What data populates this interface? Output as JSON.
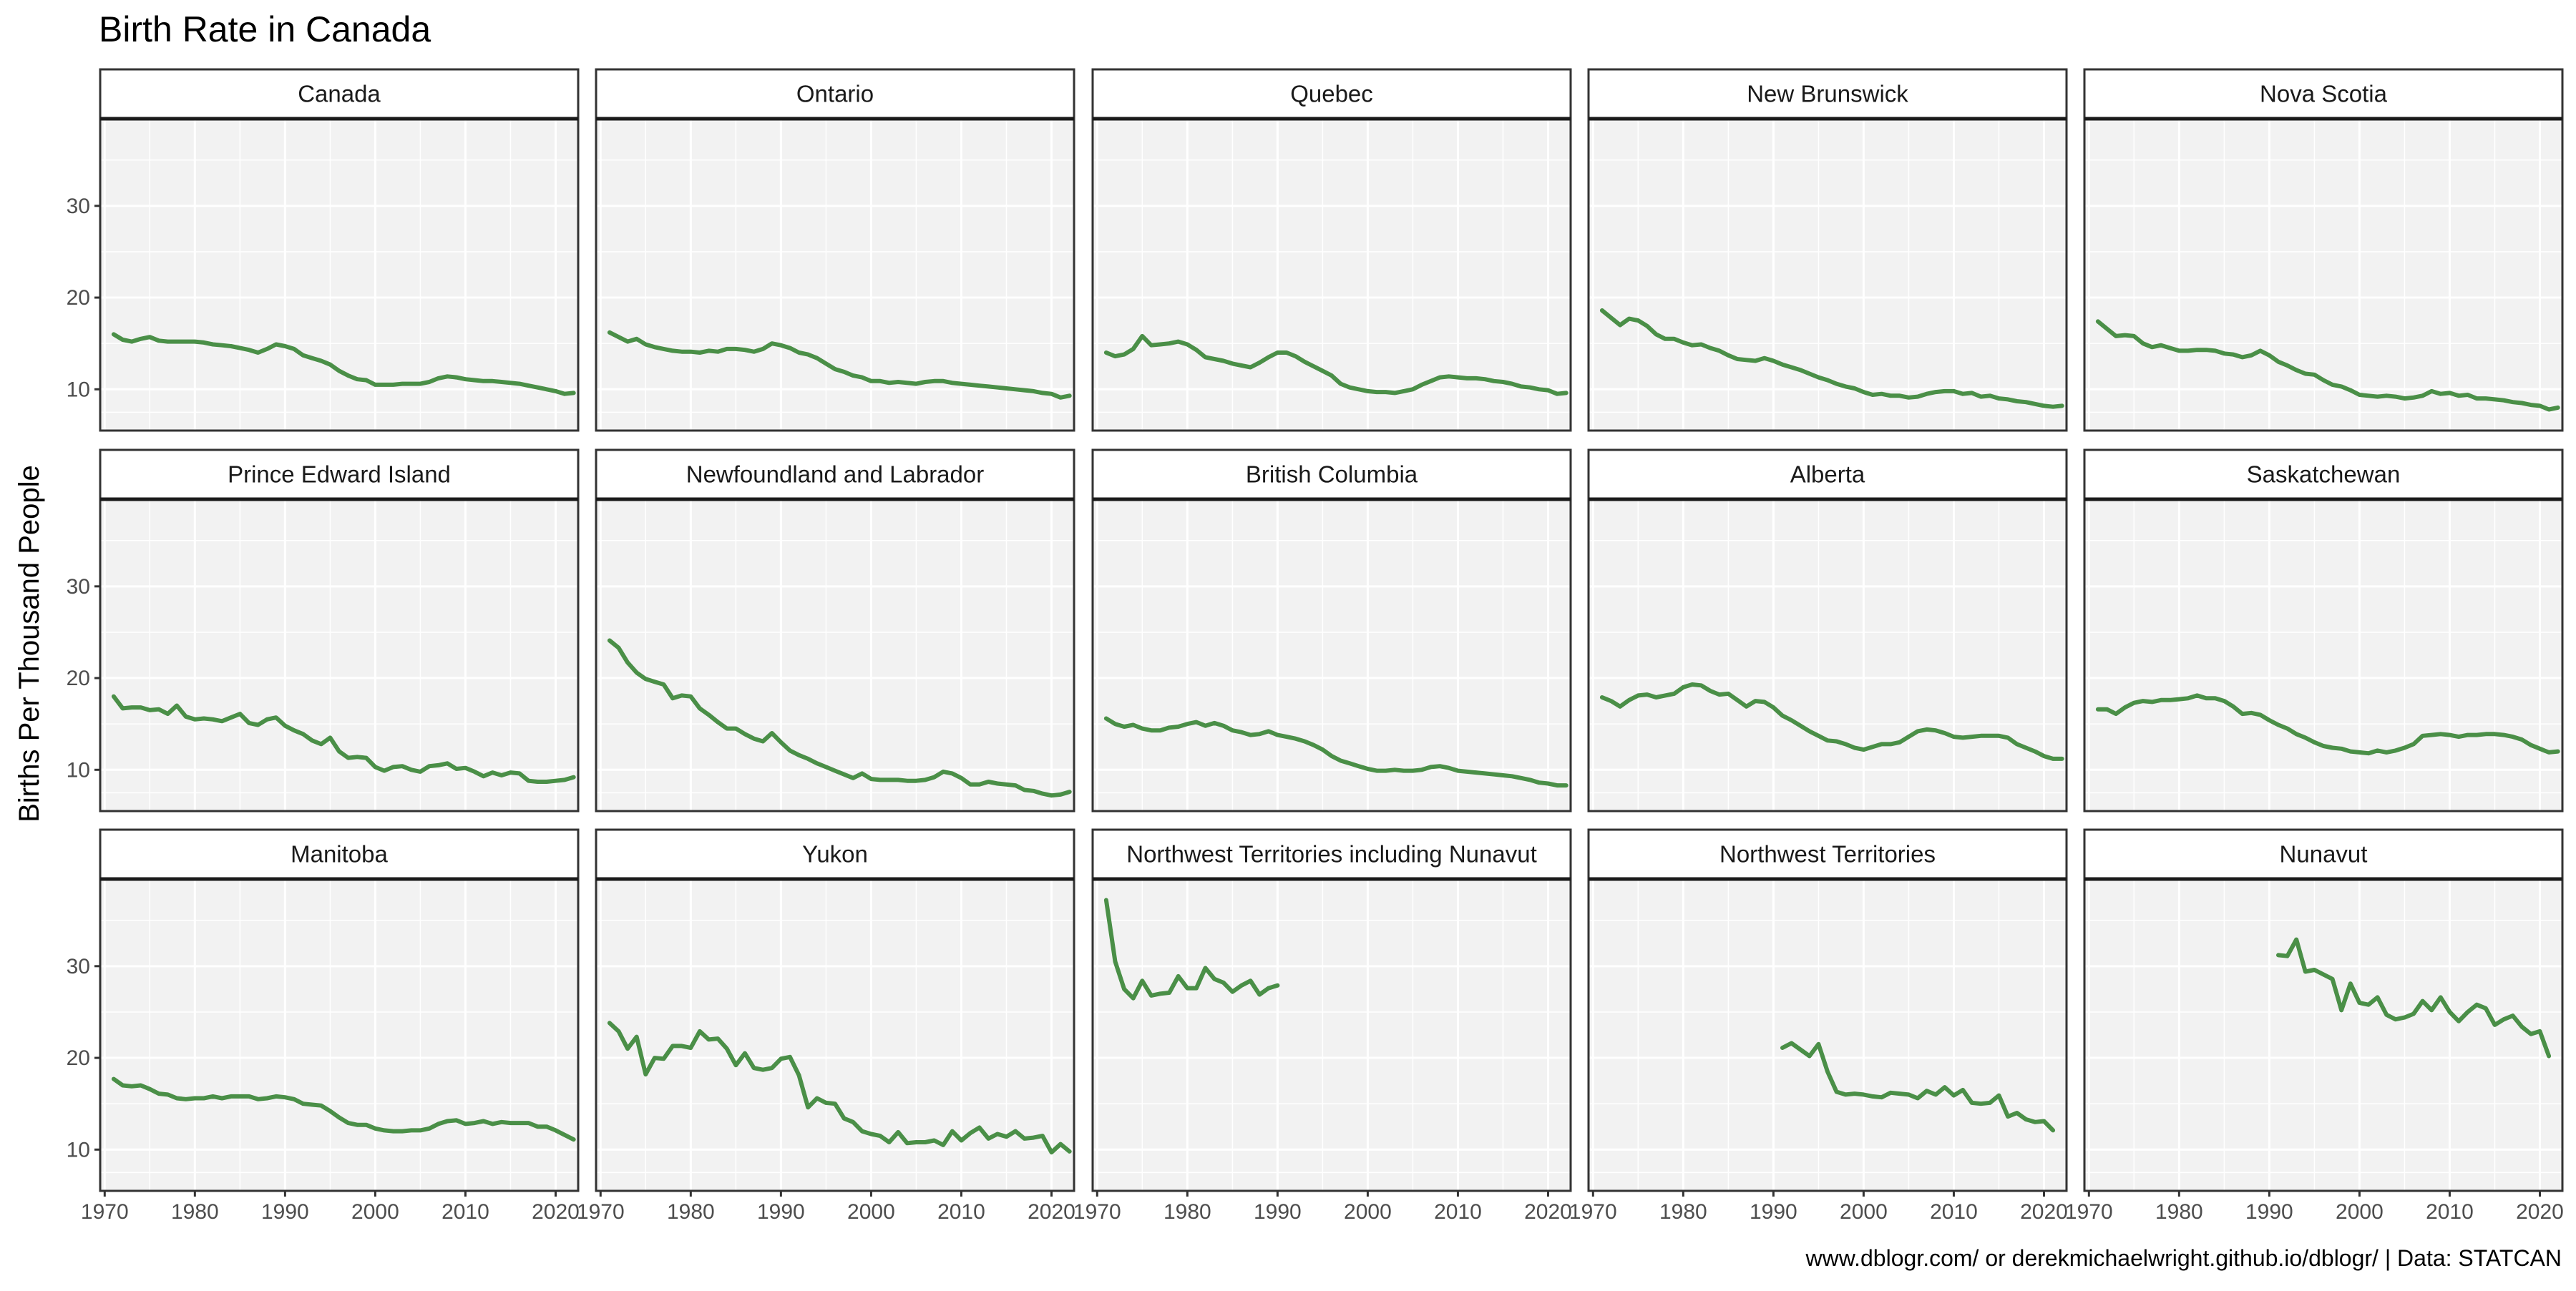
{
  "chart_data": {
    "type": "line",
    "title": "Birth Rate in Canada",
    "ylabel": "Births Per Thousand People",
    "xlabel": "",
    "caption": "www.dblogr.com/ or derekmichaelwright.github.io/dblogr/ | Data: STATCAN",
    "xlim": [
      1969.5,
      2022.5
    ],
    "ylim": [
      5.5,
      39.5
    ],
    "x_ticks": [
      1970,
      1980,
      1990,
      2000,
      2010,
      2020
    ],
    "y_ticks": [
      10,
      20,
      30
    ],
    "grid": true,
    "facet_layout": {
      "rows": 3,
      "cols": 5
    },
    "line_color": "#4a8f47",
    "panel_background": "#f2f2f2",
    "panels": [
      {
        "name": "Canada",
        "start": 1971,
        "values": [
          16.0,
          15.4,
          15.2,
          15.5,
          15.7,
          15.3,
          15.2,
          15.2,
          15.2,
          15.2,
          15.1,
          14.9,
          14.8,
          14.7,
          14.5,
          14.3,
          14.0,
          14.4,
          14.9,
          14.7,
          14.4,
          13.7,
          13.4,
          13.1,
          12.7,
          12.0,
          11.5,
          11.1,
          11.0,
          10.5,
          10.5,
          10.5,
          10.6,
          10.6,
          10.6,
          10.8,
          11.2,
          11.4,
          11.3,
          11.1,
          11.0,
          10.9,
          10.9,
          10.8,
          10.7,
          10.6,
          10.4,
          10.2,
          10.0,
          9.8,
          9.5,
          9.6
        ]
      },
      {
        "name": "Ontario",
        "start": 1971,
        "values": [
          16.2,
          15.7,
          15.2,
          15.5,
          14.9,
          14.6,
          14.4,
          14.2,
          14.1,
          14.1,
          14.0,
          14.2,
          14.1,
          14.4,
          14.4,
          14.3,
          14.1,
          14.4,
          15.0,
          14.8,
          14.5,
          14.0,
          13.8,
          13.4,
          12.8,
          12.2,
          11.9,
          11.5,
          11.3,
          10.9,
          10.9,
          10.7,
          10.8,
          10.7,
          10.6,
          10.8,
          10.9,
          10.9,
          10.7,
          10.6,
          10.5,
          10.4,
          10.3,
          10.2,
          10.1,
          10.0,
          9.9,
          9.8,
          9.6,
          9.5,
          9.1,
          9.3
        ]
      },
      {
        "name": "Quebec",
        "start": 1971,
        "values": [
          14.0,
          13.6,
          13.8,
          14.4,
          15.8,
          14.8,
          14.9,
          15.0,
          15.2,
          14.9,
          14.3,
          13.5,
          13.3,
          13.1,
          12.8,
          12.6,
          12.4,
          12.9,
          13.5,
          14.0,
          14.0,
          13.6,
          13.0,
          12.5,
          12.0,
          11.5,
          10.6,
          10.2,
          10.0,
          9.8,
          9.7,
          9.7,
          9.6,
          9.8,
          10.0,
          10.5,
          10.9,
          11.3,
          11.4,
          11.3,
          11.2,
          11.2,
          11.1,
          10.9,
          10.8,
          10.6,
          10.3,
          10.2,
          10.0,
          9.9,
          9.5,
          9.6
        ]
      },
      {
        "name": "New Brunswick",
        "start": 1971,
        "values": [
          18.6,
          17.8,
          17.0,
          17.7,
          17.5,
          16.9,
          16.0,
          15.5,
          15.5,
          15.1,
          14.8,
          14.9,
          14.5,
          14.2,
          13.7,
          13.3,
          13.2,
          13.1,
          13.4,
          13.1,
          12.7,
          12.4,
          12.1,
          11.7,
          11.3,
          11.0,
          10.6,
          10.3,
          10.1,
          9.7,
          9.4,
          9.5,
          9.3,
          9.3,
          9.1,
          9.2,
          9.5,
          9.7,
          9.8,
          9.8,
          9.5,
          9.6,
          9.2,
          9.3,
          9.0,
          8.9,
          8.7,
          8.6,
          8.4,
          8.2,
          8.1,
          8.2
        ]
      },
      {
        "name": "Nova Scotia",
        "start": 1971,
        "values": [
          17.4,
          16.6,
          15.8,
          15.9,
          15.8,
          15.0,
          14.6,
          14.8,
          14.5,
          14.2,
          14.2,
          14.3,
          14.3,
          14.2,
          13.9,
          13.8,
          13.5,
          13.7,
          14.2,
          13.7,
          13.0,
          12.6,
          12.1,
          11.7,
          11.6,
          11.0,
          10.5,
          10.3,
          9.9,
          9.4,
          9.3,
          9.2,
          9.3,
          9.2,
          9.0,
          9.1,
          9.3,
          9.8,
          9.5,
          9.6,
          9.3,
          9.4,
          9.0,
          9.0,
          8.9,
          8.8,
          8.6,
          8.5,
          8.3,
          8.2,
          7.8,
          8.0
        ]
      },
      {
        "name": "Prince Edward Island",
        "start": 1971,
        "values": [
          18.0,
          16.7,
          16.8,
          16.8,
          16.5,
          16.6,
          16.1,
          17.0,
          15.8,
          15.5,
          15.6,
          15.5,
          15.3,
          15.7,
          16.1,
          15.1,
          14.9,
          15.5,
          15.7,
          14.8,
          14.3,
          13.9,
          13.2,
          12.8,
          13.5,
          12.0,
          11.3,
          11.4,
          11.3,
          10.3,
          9.9,
          10.3,
          10.4,
          10.0,
          9.8,
          10.4,
          10.5,
          10.7,
          10.1,
          10.2,
          9.8,
          9.3,
          9.7,
          9.4,
          9.7,
          9.6,
          8.8,
          8.7,
          8.7,
          8.8,
          8.9,
          9.2
        ]
      },
      {
        "name": "Newfoundland and Labrador",
        "start": 1971,
        "values": [
          24.1,
          23.3,
          21.7,
          20.6,
          19.9,
          19.6,
          19.3,
          17.8,
          18.1,
          18.0,
          16.7,
          16.0,
          15.2,
          14.5,
          14.5,
          13.9,
          13.4,
          13.1,
          14.0,
          13.0,
          12.1,
          11.6,
          11.2,
          10.7,
          10.3,
          9.9,
          9.5,
          9.1,
          9.6,
          9.0,
          8.9,
          8.9,
          8.9,
          8.8,
          8.8,
          8.9,
          9.2,
          9.8,
          9.6,
          9.1,
          8.4,
          8.4,
          8.7,
          8.5,
          8.4,
          8.3,
          7.8,
          7.7,
          7.4,
          7.2,
          7.3,
          7.6
        ]
      },
      {
        "name": "British Columbia",
        "start": 1971,
        "values": [
          15.6,
          15.0,
          14.7,
          14.9,
          14.5,
          14.3,
          14.3,
          14.6,
          14.7,
          15.0,
          15.2,
          14.8,
          15.1,
          14.8,
          14.3,
          14.1,
          13.8,
          13.9,
          14.2,
          13.8,
          13.6,
          13.4,
          13.1,
          12.7,
          12.2,
          11.5,
          11.0,
          10.7,
          10.4,
          10.1,
          9.9,
          9.9,
          10.0,
          9.9,
          9.9,
          10.0,
          10.3,
          10.4,
          10.2,
          9.9,
          9.8,
          9.7,
          9.6,
          9.5,
          9.4,
          9.3,
          9.1,
          8.9,
          8.6,
          8.5,
          8.3,
          8.3
        ]
      },
      {
        "name": "Alberta",
        "start": 1971,
        "values": [
          17.9,
          17.5,
          16.9,
          17.6,
          18.1,
          18.2,
          17.9,
          18.1,
          18.3,
          19.0,
          19.3,
          19.2,
          18.6,
          18.2,
          18.3,
          17.6,
          16.9,
          17.5,
          17.4,
          16.8,
          15.9,
          15.4,
          14.8,
          14.2,
          13.7,
          13.2,
          13.1,
          12.8,
          12.4,
          12.2,
          12.5,
          12.8,
          12.8,
          13.0,
          13.6,
          14.2,
          14.4,
          14.3,
          14.0,
          13.6,
          13.5,
          13.6,
          13.7,
          13.7,
          13.7,
          13.5,
          12.8,
          12.4,
          12.0,
          11.5,
          11.2,
          11.2
        ]
      },
      {
        "name": "Saskatchewan",
        "start": 1971,
        "values": [
          16.6,
          16.6,
          16.1,
          16.8,
          17.3,
          17.5,
          17.4,
          17.6,
          17.6,
          17.7,
          17.8,
          18.1,
          17.8,
          17.8,
          17.5,
          16.9,
          16.1,
          16.2,
          16.0,
          15.4,
          14.9,
          14.5,
          13.9,
          13.5,
          13.0,
          12.6,
          12.4,
          12.3,
          12.0,
          11.9,
          11.8,
          12.1,
          11.9,
          12.1,
          12.4,
          12.8,
          13.7,
          13.8,
          13.9,
          13.8,
          13.6,
          13.8,
          13.8,
          13.9,
          13.9,
          13.8,
          13.6,
          13.3,
          12.7,
          12.3,
          11.9,
          12.0
        ]
      },
      {
        "name": "Manitoba",
        "start": 1971,
        "values": [
          17.7,
          17.0,
          16.9,
          17.0,
          16.6,
          16.1,
          16.0,
          15.6,
          15.5,
          15.6,
          15.6,
          15.8,
          15.6,
          15.8,
          15.8,
          15.8,
          15.5,
          15.6,
          15.8,
          15.7,
          15.5,
          15.0,
          14.9,
          14.8,
          14.2,
          13.5,
          12.9,
          12.7,
          12.7,
          12.3,
          12.1,
          12.0,
          12.0,
          12.1,
          12.1,
          12.3,
          12.8,
          13.1,
          13.2,
          12.8,
          12.9,
          13.1,
          12.8,
          13.0,
          12.9,
          12.9,
          12.9,
          12.5,
          12.5,
          12.1,
          11.6,
          11.1
        ]
      },
      {
        "name": "Yukon",
        "start": 1971,
        "values": [
          23.8,
          22.9,
          21.0,
          22.3,
          18.2,
          20.0,
          19.9,
          21.3,
          21.3,
          21.1,
          22.9,
          22.0,
          22.1,
          21.0,
          19.2,
          20.5,
          18.9,
          18.7,
          18.9,
          19.9,
          20.1,
          18.1,
          14.6,
          15.6,
          15.1,
          15.0,
          13.4,
          13.0,
          12.0,
          11.7,
          11.5,
          10.8,
          11.9,
          10.7,
          10.8,
          10.8,
          11.0,
          10.5,
          12.0,
          11.0,
          11.8,
          12.4,
          11.2,
          11.7,
          11.4,
          12.0,
          11.2,
          11.3,
          11.5,
          9.7,
          10.6,
          9.8
        ]
      },
      {
        "name": "Northwest Territories including Nunavut",
        "start": 1971,
        "values": [
          37.2,
          30.5,
          27.5,
          26.5,
          28.4,
          26.8,
          27.0,
          27.1,
          28.9,
          27.6,
          27.6,
          29.8,
          28.6,
          28.2,
          27.2,
          27.9,
          28.4,
          26.9,
          27.6,
          27.9
        ]
      },
      {
        "name": "Northwest Territories",
        "start": 1991,
        "values": [
          21.1,
          21.6,
          20.9,
          20.2,
          21.5,
          18.5,
          16.3,
          16.0,
          16.1,
          16.0,
          15.8,
          15.7,
          16.2,
          16.1,
          16.0,
          15.6,
          16.4,
          16.0,
          16.8,
          15.9,
          16.5,
          15.1,
          15.0,
          15.1,
          15.9,
          13.6,
          14.0,
          13.3,
          13.0,
          13.1,
          12.1
        ]
      },
      {
        "name": "Nunavut",
        "start": 1991,
        "values": [
          31.2,
          31.1,
          32.9,
          29.4,
          29.6,
          29.1,
          28.6,
          25.2,
          28.1,
          26.0,
          25.8,
          26.6,
          24.7,
          24.2,
          24.4,
          24.8,
          26.2,
          25.2,
          26.6,
          25.0,
          24.0,
          25.0,
          25.8,
          25.4,
          23.6,
          24.2,
          24.6,
          23.4,
          22.6,
          22.9,
          20.2
        ]
      }
    ]
  }
}
